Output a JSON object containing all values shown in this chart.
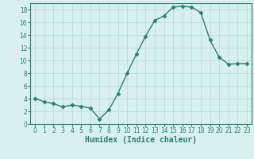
{
  "x": [
    0,
    1,
    2,
    3,
    4,
    5,
    6,
    7,
    8,
    9,
    10,
    11,
    12,
    13,
    14,
    15,
    16,
    17,
    18,
    19,
    20,
    21,
    22,
    23
  ],
  "y": [
    4.0,
    3.5,
    3.2,
    2.7,
    3.0,
    2.8,
    2.5,
    0.8,
    2.2,
    4.8,
    8.0,
    11.0,
    13.8,
    16.3,
    17.0,
    18.4,
    18.5,
    18.4,
    17.5,
    13.2,
    10.5,
    9.4,
    9.5,
    9.5
  ],
  "line_color": "#2d7d6e",
  "marker": "D",
  "marker_size": 2.5,
  "bg_color": "#d8f0ee",
  "grid_color": "#c0dcd8",
  "xlabel": "Humidex (Indice chaleur)",
  "xlim": [
    -0.5,
    23.5
  ],
  "ylim": [
    0,
    19
  ],
  "yticks": [
    0,
    2,
    4,
    6,
    8,
    10,
    12,
    14,
    16,
    18
  ],
  "xticks": [
    0,
    1,
    2,
    3,
    4,
    5,
    6,
    7,
    8,
    9,
    10,
    11,
    12,
    13,
    14,
    15,
    16,
    17,
    18,
    19,
    20,
    21,
    22,
    23
  ],
  "axis_color": "#2d7d6e",
  "tick_color": "#2d7d6e",
  "label_fontsize": 7,
  "tick_fontsize": 5.5
}
